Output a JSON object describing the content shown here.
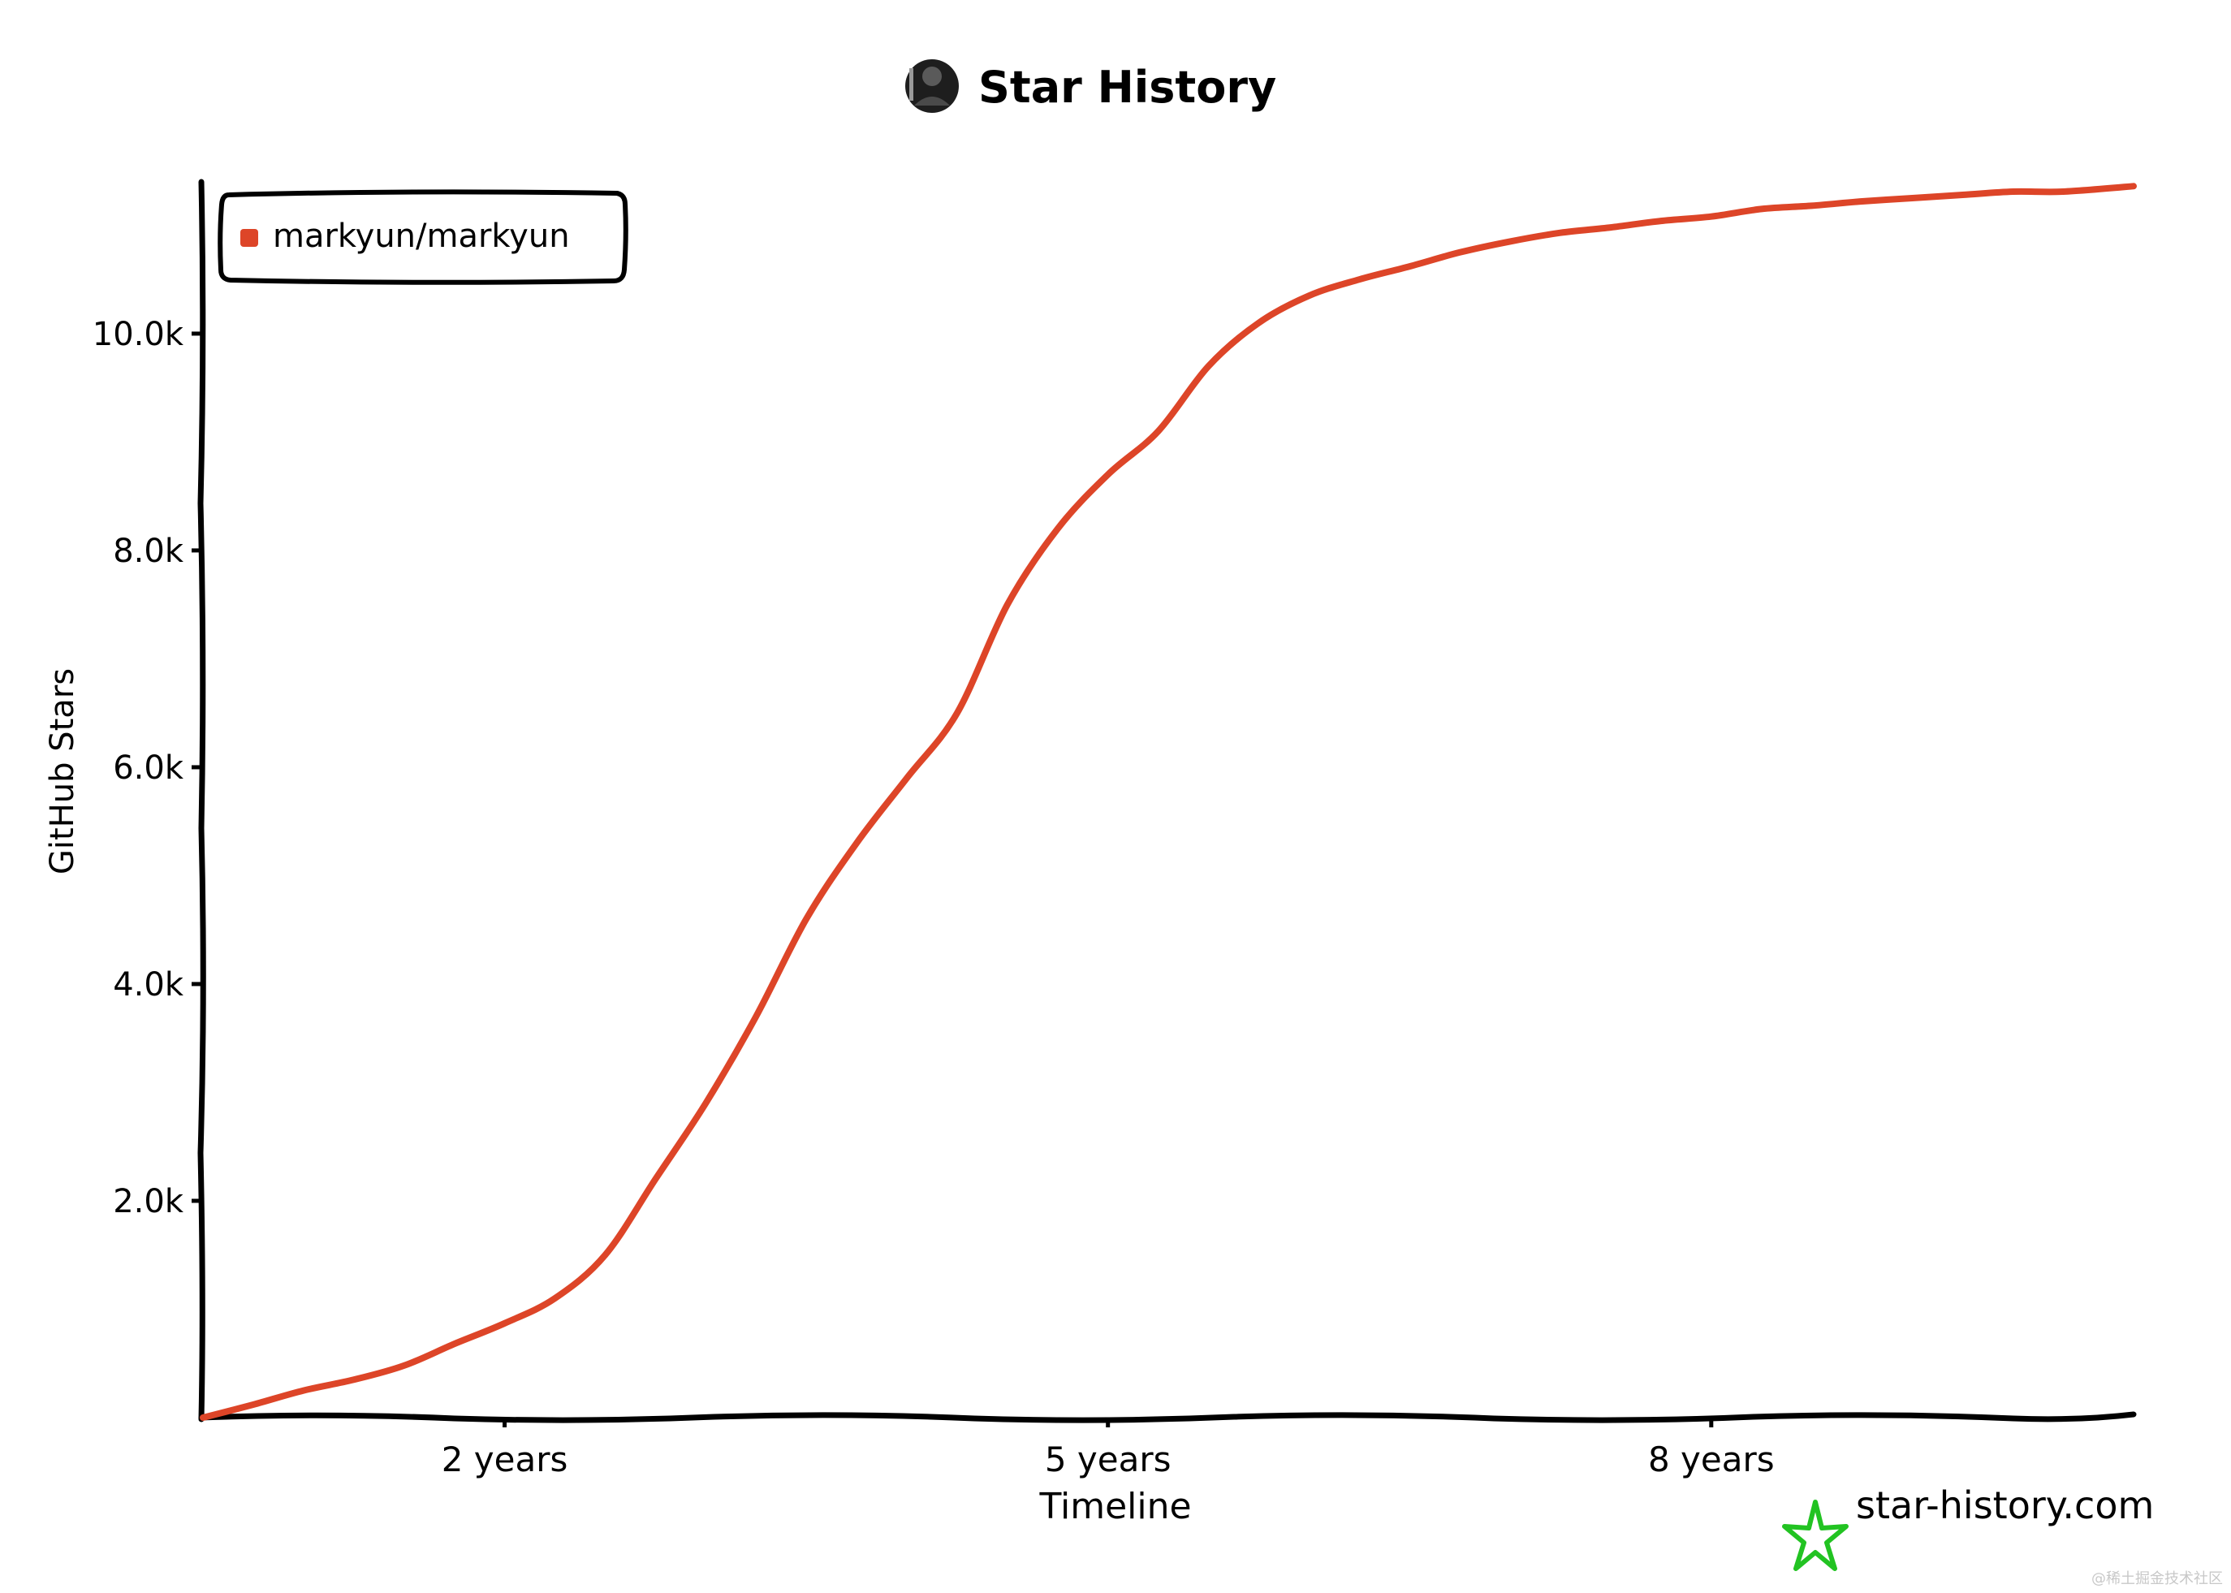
{
  "header": {
    "title": "Star History",
    "avatar_icon": "user-avatar-icon"
  },
  "footer": {
    "brand": "star-history.com",
    "brand_icon": "star-outline-icon",
    "brand_color": "#22c322",
    "watermark": "@稀土掘金技术社区"
  },
  "chart_data": {
    "type": "line",
    "title": "Star History",
    "xlabel": "Timeline",
    "ylabel": "GitHub Stars",
    "xlim": [
      0,
      9.6
    ],
    "ylim": [
      0,
      11400
    ],
    "x_ticks": [
      {
        "value": 1.5,
        "label": "2 years"
      },
      {
        "value": 4.5,
        "label": "5 years"
      },
      {
        "value": 7.5,
        "label": "8 years"
      }
    ],
    "y_ticks": [
      {
        "value": 2000,
        "label": "2.0k"
      },
      {
        "value": 4000,
        "label": "4.0k"
      },
      {
        "value": 6000,
        "label": "6.0k"
      },
      {
        "value": 8000,
        "label": "8.0k"
      },
      {
        "value": 10000,
        "label": "10.0k"
      }
    ],
    "legend_position": "top-left",
    "grid": false,
    "series": [
      {
        "name": "markyun/markyun",
        "color": "#dd4528",
        "x": [
          0,
          0.25,
          0.5,
          0.75,
          1.0,
          1.25,
          1.5,
          1.75,
          2.0,
          2.25,
          2.5,
          2.75,
          3.0,
          3.25,
          3.5,
          3.75,
          4.0,
          4.25,
          4.5,
          4.75,
          5.0,
          5.25,
          5.5,
          5.75,
          6.0,
          6.25,
          6.5,
          6.75,
          7.0,
          7.25,
          7.5,
          7.75,
          8.0,
          8.25,
          8.5,
          8.75,
          9.0,
          9.25,
          9.6
        ],
        "values": [
          0,
          120,
          250,
          350,
          480,
          680,
          870,
          1100,
          1500,
          2200,
          2900,
          3700,
          4600,
          5300,
          5900,
          6500,
          7500,
          8200,
          8700,
          9100,
          9700,
          10100,
          10350,
          10500,
          10620,
          10750,
          10850,
          10930,
          10980,
          11040,
          11080,
          11150,
          11180,
          11220,
          11250,
          11280,
          11310,
          11310,
          11360
        ]
      }
    ]
  }
}
